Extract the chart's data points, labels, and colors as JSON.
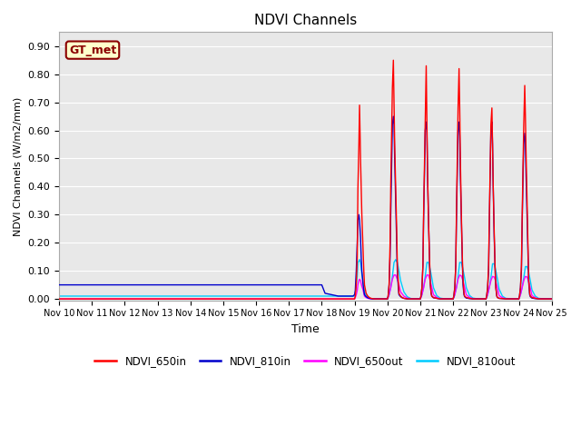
{
  "title": "NDVI Channels",
  "xlabel": "Time",
  "ylabel": "NDVI Channels (W/m2/mm)",
  "ylim": [
    -0.005,
    0.95
  ],
  "xlim": [
    0,
    15
  ],
  "fig_bg": "#ffffff",
  "plot_bg": "#e8e8e8",
  "annotation_label": "GT_met",
  "annotation_color": "#8B0000",
  "annotation_bg": "#ffffcc",
  "tick_labels": [
    "Nov 10",
    "Nov 11",
    "Nov 12",
    "Nov 13",
    "Nov 14",
    "Nov 15",
    "Nov 16",
    "Nov 17",
    "Nov 18",
    "Nov 19",
    "Nov 20",
    "Nov 21",
    "Nov 22",
    "Nov 23",
    "Nov 24",
    "Nov 25"
  ],
  "colors": {
    "NDVI_650in": "#ff0000",
    "NDVI_810in": "#0000cc",
    "NDVI_650out": "#ff00ff",
    "NDVI_810out": "#00ccff"
  },
  "series": {
    "NDVI_650in": {
      "x": [
        0,
        0.5,
        1,
        1.5,
        2,
        2.5,
        3,
        3.5,
        4,
        4.5,
        5,
        5.5,
        6,
        6.5,
        7,
        7.5,
        8,
        8.5,
        8.9,
        8.95,
        9.0,
        9.02,
        9.05,
        9.08,
        9.1,
        9.13,
        9.15,
        9.18,
        9.2,
        9.22,
        9.25,
        9.28,
        9.3,
        9.35,
        9.4,
        9.45,
        9.5,
        9.55,
        9.6,
        9.7,
        9.8,
        9.9,
        10.0,
        10.02,
        10.05,
        10.08,
        10.1,
        10.13,
        10.15,
        10.18,
        10.2,
        10.22,
        10.25,
        10.28,
        10.3,
        10.33,
        10.35,
        10.4,
        10.45,
        10.5,
        10.55,
        10.6,
        10.7,
        10.8,
        10.9,
        11.0,
        11.02,
        11.05,
        11.08,
        11.1,
        11.13,
        11.15,
        11.18,
        11.2,
        11.22,
        11.25,
        11.28,
        11.3,
        11.33,
        11.35,
        11.4,
        11.5,
        11.6,
        11.7,
        11.8,
        11.9,
        12.0,
        12.02,
        12.05,
        12.08,
        12.1,
        12.13,
        12.15,
        12.18,
        12.2,
        12.22,
        12.25,
        12.28,
        12.3,
        12.33,
        12.35,
        12.4,
        12.5,
        12.6,
        12.7,
        12.8,
        12.9,
        13.0,
        13.02,
        13.05,
        13.08,
        13.1,
        13.13,
        13.15,
        13.18,
        13.2,
        13.22,
        13.25,
        13.28,
        13.3,
        13.33,
        13.35,
        13.4,
        13.5,
        13.6,
        13.7,
        13.8,
        13.9,
        14.0,
        14.02,
        14.05,
        14.08,
        14.1,
        14.13,
        14.15,
        14.18,
        14.2,
        14.22,
        14.25,
        14.28,
        14.3,
        14.33,
        14.35,
        14.4,
        14.5,
        14.6,
        14.7,
        14.8,
        14.9,
        15.0
      ],
      "y": [
        0,
        0,
        0,
        0,
        0,
        0,
        0,
        0,
        0,
        0,
        0,
        0,
        0,
        0,
        0,
        0,
        0,
        0,
        0,
        0,
        0,
        0.01,
        0.05,
        0.15,
        0.39,
        0.55,
        0.69,
        0.5,
        0.4,
        0.3,
        0.2,
        0.1,
        0.05,
        0.02,
        0.01,
        0.005,
        0.002,
        0.001,
        0,
        0,
        0,
        0,
        0,
        0.01,
        0.05,
        0.2,
        0.4,
        0.6,
        0.75,
        0.85,
        0.7,
        0.55,
        0.4,
        0.25,
        0.12,
        0.06,
        0.02,
        0.01,
        0.005,
        0.002,
        0.001,
        0,
        0,
        0,
        0,
        0,
        0.01,
        0.04,
        0.12,
        0.3,
        0.5,
        0.65,
        0.83,
        0.65,
        0.45,
        0.28,
        0.14,
        0.06,
        0.02,
        0.01,
        0.005,
        0.002,
        0,
        0,
        0,
        0,
        0,
        0.01,
        0.04,
        0.12,
        0.3,
        0.52,
        0.68,
        0.82,
        0.68,
        0.5,
        0.3,
        0.15,
        0.07,
        0.02,
        0.01,
        0.005,
        0.002,
        0,
        0,
        0,
        0,
        0,
        0.01,
        0.04,
        0.12,
        0.28,
        0.48,
        0.62,
        0.68,
        0.55,
        0.4,
        0.24,
        0.1,
        0.04,
        0.01,
        0.005,
        0.002,
        0.001,
        0,
        0,
        0,
        0,
        0,
        0.01,
        0.04,
        0.12,
        0.28,
        0.48,
        0.62,
        0.76,
        0.65,
        0.52,
        0.35,
        0.18,
        0.07,
        0.02,
        0.01,
        0.005,
        0.002,
        0,
        0,
        0,
        0,
        0
      ]
    },
    "NDVI_810in": {
      "x": [
        0,
        0.5,
        1,
        1.5,
        2,
        2.5,
        3,
        3.5,
        4,
        4.5,
        5,
        5.5,
        6,
        6.5,
        7,
        7.3,
        7.6,
        7.9,
        8.0,
        8.1,
        8.5,
        8.9,
        8.95,
        9.0,
        9.02,
        9.05,
        9.08,
        9.1,
        9.13,
        9.15,
        9.18,
        9.2,
        9.22,
        9.25,
        9.28,
        9.3,
        9.35,
        9.4,
        9.45,
        9.5,
        9.55,
        9.6,
        9.7,
        9.8,
        9.9,
        10.0,
        10.02,
        10.05,
        10.08,
        10.1,
        10.13,
        10.15,
        10.18,
        10.2,
        10.22,
        10.25,
        10.28,
        10.3,
        10.33,
        10.35,
        10.4,
        10.45,
        10.5,
        10.55,
        10.6,
        10.7,
        10.8,
        10.9,
        11.0,
        11.02,
        11.05,
        11.08,
        11.1,
        11.13,
        11.15,
        11.18,
        11.2,
        11.22,
        11.25,
        11.28,
        11.3,
        11.33,
        11.35,
        11.4,
        11.5,
        11.6,
        11.7,
        11.8,
        11.9,
        12.0,
        12.02,
        12.05,
        12.08,
        12.1,
        12.13,
        12.15,
        12.18,
        12.2,
        12.22,
        12.25,
        12.28,
        12.3,
        12.33,
        12.35,
        12.4,
        12.5,
        12.6,
        12.7,
        12.8,
        12.9,
        13.0,
        13.02,
        13.05,
        13.08,
        13.1,
        13.13,
        13.15,
        13.18,
        13.2,
        13.22,
        13.25,
        13.28,
        13.3,
        13.33,
        13.35,
        13.4,
        13.5,
        13.6,
        13.7,
        13.8,
        13.9,
        14.0,
        14.02,
        14.05,
        14.08,
        14.1,
        14.13,
        14.15,
        14.18,
        14.2,
        14.22,
        14.25,
        14.28,
        14.3,
        14.33,
        14.35,
        14.4,
        14.5,
        14.6,
        14.7,
        14.8,
        14.9,
        15.0
      ],
      "y": [
        0.05,
        0.05,
        0.05,
        0.05,
        0.05,
        0.05,
        0.05,
        0.05,
        0.05,
        0.05,
        0.05,
        0.05,
        0.05,
        0.05,
        0.05,
        0.05,
        0.05,
        0.05,
        0.05,
        0.02,
        0.01,
        0.01,
        0.01,
        0.015,
        0.03,
        0.1,
        0.2,
        0.28,
        0.3,
        0.28,
        0.22,
        0.15,
        0.1,
        0.06,
        0.03,
        0.015,
        0.008,
        0.004,
        0.002,
        0.001,
        0,
        0,
        0,
        0,
        0,
        0,
        0.01,
        0.05,
        0.15,
        0.3,
        0.5,
        0.62,
        0.65,
        0.62,
        0.5,
        0.35,
        0.2,
        0.1,
        0.04,
        0.015,
        0.008,
        0.004,
        0.002,
        0.001,
        0,
        0,
        0,
        0,
        0,
        0.01,
        0.04,
        0.12,
        0.28,
        0.46,
        0.6,
        0.63,
        0.6,
        0.45,
        0.28,
        0.14,
        0.06,
        0.02,
        0.01,
        0.004,
        0.002,
        0,
        0,
        0,
        0,
        0,
        0.01,
        0.04,
        0.12,
        0.28,
        0.48,
        0.6,
        0.63,
        0.58,
        0.44,
        0.28,
        0.13,
        0.05,
        0.015,
        0.008,
        0.003,
        0.001,
        0,
        0,
        0,
        0,
        0,
        0.01,
        0.04,
        0.1,
        0.25,
        0.45,
        0.6,
        0.63,
        0.55,
        0.4,
        0.22,
        0.1,
        0.04,
        0.01,
        0.005,
        0.002,
        0.001,
        0,
        0,
        0,
        0,
        0,
        0.01,
        0.04,
        0.1,
        0.25,
        0.45,
        0.55,
        0.59,
        0.56,
        0.44,
        0.3,
        0.15,
        0.06,
        0.015,
        0.008,
        0.003,
        0.001,
        0,
        0,
        0,
        0,
        0
      ]
    },
    "NDVI_650out": {
      "x": [
        0,
        0.5,
        1,
        1.5,
        2,
        2.5,
        3,
        3.5,
        4,
        4.5,
        5,
        5.5,
        6,
        6.5,
        7,
        7.5,
        8,
        8.5,
        8.9,
        8.95,
        9.0,
        9.02,
        9.05,
        9.08,
        9.1,
        9.13,
        9.15,
        9.18,
        9.2,
        9.22,
        9.25,
        9.28,
        9.3,
        9.35,
        9.4,
        9.45,
        9.5,
        9.55,
        9.6,
        9.7,
        9.8,
        9.9,
        10.0,
        10.02,
        10.05,
        10.1,
        10.15,
        10.2,
        10.25,
        10.3,
        10.35,
        10.4,
        10.5,
        10.6,
        10.7,
        10.8,
        10.9,
        11.0,
        11.02,
        11.05,
        11.1,
        11.15,
        11.2,
        11.25,
        11.3,
        11.35,
        11.4,
        11.5,
        11.6,
        11.7,
        11.8,
        11.9,
        12.0,
        12.02,
        12.05,
        12.1,
        12.15,
        12.2,
        12.25,
        12.3,
        12.35,
        12.4,
        12.5,
        12.6,
        12.7,
        12.8,
        12.9,
        13.0,
        13.02,
        13.05,
        13.1,
        13.15,
        13.2,
        13.25,
        13.3,
        13.35,
        13.4,
        13.5,
        13.6,
        13.7,
        13.8,
        13.9,
        14.0,
        14.02,
        14.05,
        14.1,
        14.15,
        14.2,
        14.25,
        14.3,
        14.35,
        14.4,
        14.5,
        14.6,
        14.7,
        14.8,
        14.9,
        15.0
      ],
      "y": [
        0,
        0,
        0,
        0,
        0,
        0,
        0,
        0,
        0,
        0,
        0,
        0,
        0,
        0,
        0,
        0,
        0,
        0,
        0,
        0,
        0,
        0.005,
        0.015,
        0.03,
        0.05,
        0.065,
        0.07,
        0.065,
        0.055,
        0.045,
        0.035,
        0.02,
        0.01,
        0.005,
        0.002,
        0.001,
        0,
        0,
        0,
        0,
        0,
        0,
        0,
        0.005,
        0.015,
        0.04,
        0.07,
        0.085,
        0.085,
        0.07,
        0.05,
        0.025,
        0.01,
        0.003,
        0.001,
        0,
        0,
        0,
        0.005,
        0.015,
        0.04,
        0.07,
        0.085,
        0.085,
        0.065,
        0.04,
        0.015,
        0.005,
        0.001,
        0,
        0,
        0,
        0,
        0.005,
        0.015,
        0.04,
        0.07,
        0.085,
        0.082,
        0.065,
        0.04,
        0.015,
        0.005,
        0.001,
        0,
        0,
        0,
        0,
        0.005,
        0.015,
        0.04,
        0.065,
        0.08,
        0.078,
        0.062,
        0.038,
        0.012,
        0.004,
        0.001,
        0,
        0,
        0,
        0,
        0.005,
        0.015,
        0.04,
        0.065,
        0.08,
        0.078,
        0.062,
        0.038,
        0.012,
        0.004,
        0.001,
        0,
        0,
        0,
        0
      ]
    },
    "NDVI_810out": {
      "x": [
        0,
        0.5,
        1,
        1.5,
        2,
        2.5,
        3,
        3.5,
        4,
        4.5,
        5,
        5.5,
        6,
        6.5,
        7,
        7.5,
        8,
        8.5,
        8.9,
        8.95,
        9.0,
        9.02,
        9.05,
        9.08,
        9.1,
        9.13,
        9.15,
        9.18,
        9.2,
        9.22,
        9.25,
        9.28,
        9.3,
        9.35,
        9.4,
        9.45,
        9.5,
        9.55,
        9.6,
        9.7,
        9.8,
        9.9,
        10.0,
        10.02,
        10.05,
        10.1,
        10.15,
        10.2,
        10.25,
        10.3,
        10.35,
        10.4,
        10.5,
        10.6,
        10.7,
        10.8,
        10.9,
        11.0,
        11.02,
        11.05,
        11.1,
        11.15,
        11.2,
        11.25,
        11.3,
        11.35,
        11.4,
        11.5,
        11.6,
        11.7,
        11.8,
        11.9,
        12.0,
        12.02,
        12.05,
        12.1,
        12.15,
        12.2,
        12.25,
        12.3,
        12.35,
        12.4,
        12.5,
        12.6,
        12.7,
        12.8,
        12.9,
        13.0,
        13.02,
        13.05,
        13.1,
        13.15,
        13.2,
        13.25,
        13.3,
        13.35,
        13.4,
        13.5,
        13.6,
        13.7,
        13.8,
        13.9,
        14.0,
        14.02,
        14.05,
        14.1,
        14.15,
        14.2,
        14.25,
        14.3,
        14.35,
        14.4,
        14.5,
        14.6,
        14.7,
        14.8,
        14.9,
        15.0
      ],
      "y": [
        0.01,
        0.01,
        0.01,
        0.01,
        0.01,
        0.01,
        0.01,
        0.01,
        0.01,
        0.01,
        0.01,
        0.01,
        0.01,
        0.01,
        0.01,
        0.01,
        0.01,
        0.01,
        0.01,
        0.01,
        0.01,
        0.02,
        0.05,
        0.08,
        0.13,
        0.135,
        0.14,
        0.13,
        0.11,
        0.09,
        0.07,
        0.04,
        0.025,
        0.012,
        0.006,
        0.003,
        0.001,
        0,
        0,
        0,
        0,
        0,
        0,
        0.005,
        0.015,
        0.04,
        0.08,
        0.13,
        0.14,
        0.13,
        0.1,
        0.065,
        0.025,
        0.008,
        0.002,
        0,
        0,
        0,
        0.005,
        0.015,
        0.04,
        0.08,
        0.13,
        0.13,
        0.105,
        0.075,
        0.04,
        0.012,
        0.003,
        0.001,
        0,
        0,
        0,
        0.005,
        0.015,
        0.04,
        0.08,
        0.13,
        0.13,
        0.105,
        0.075,
        0.04,
        0.012,
        0.003,
        0.001,
        0,
        0,
        0,
        0.005,
        0.015,
        0.04,
        0.075,
        0.125,
        0.125,
        0.1,
        0.07,
        0.035,
        0.01,
        0.002,
        0.001,
        0,
        0,
        0,
        0.005,
        0.015,
        0.04,
        0.075,
        0.115,
        0.115,
        0.095,
        0.065,
        0.032,
        0.01,
        0.002,
        0.001,
        0,
        0,
        0
      ]
    }
  }
}
